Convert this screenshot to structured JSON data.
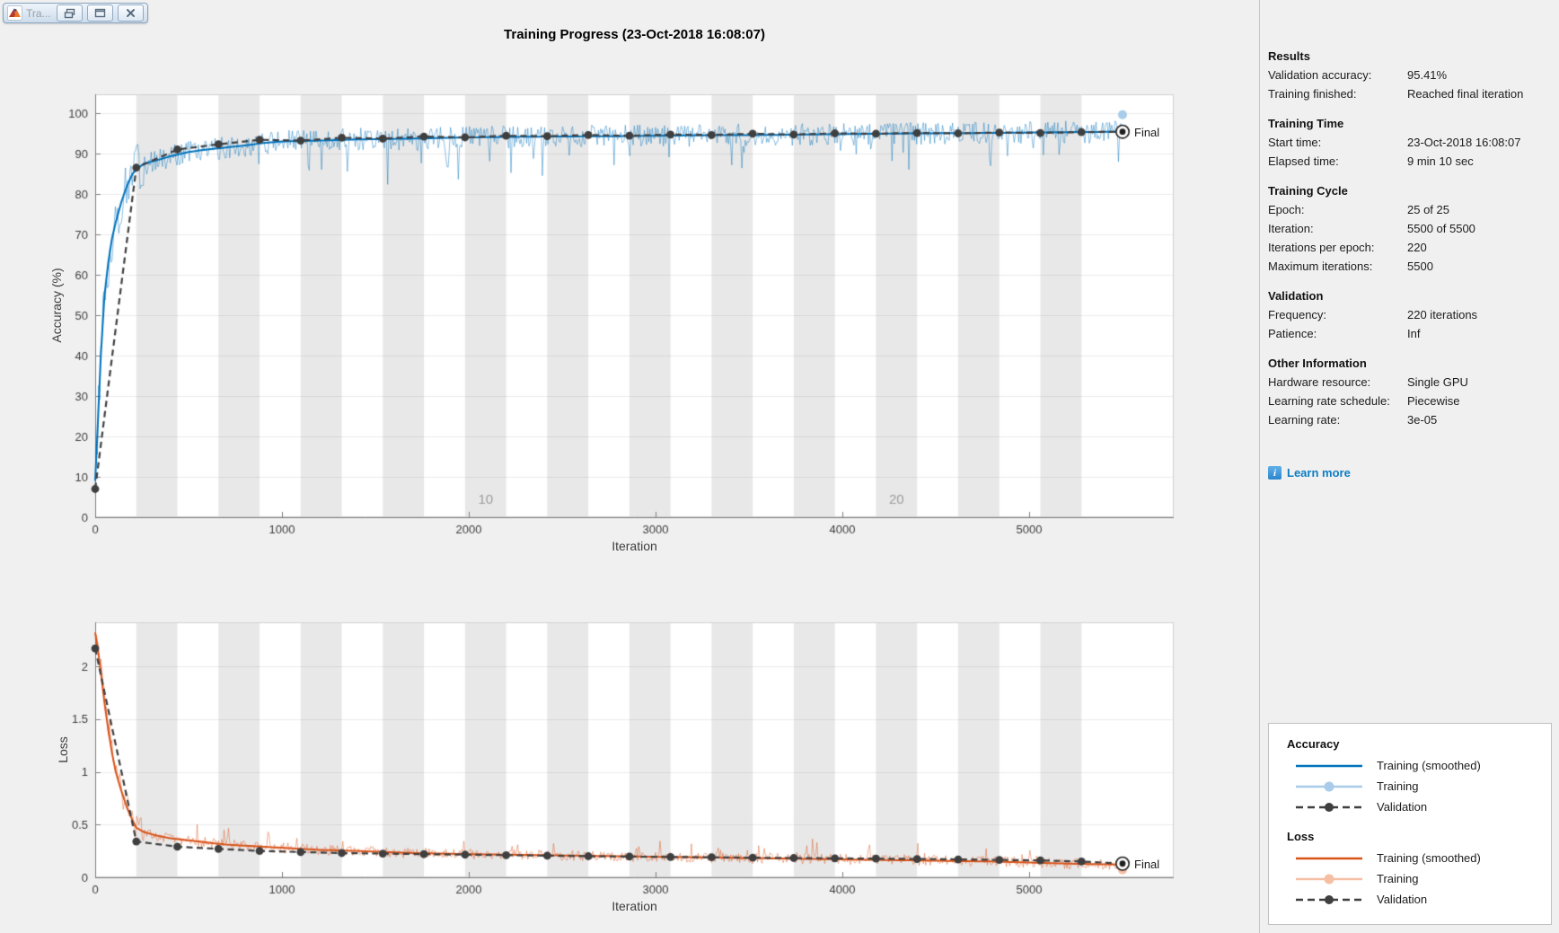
{
  "window": {
    "title": "Tra...",
    "titlebar_icons": [
      "matlab-logo-icon",
      "float-window-icon",
      "dock-window-icon",
      "close-icon"
    ]
  },
  "header": {
    "title": "Training Progress (23-Oct-2018 16:08:07)"
  },
  "chart_data": [
    {
      "type": "line",
      "id": "accuracy",
      "title": "",
      "xlabel": "Iteration",
      "ylabel": "Accuracy (%)",
      "xlim": [
        0,
        5774
      ],
      "ylim": [
        0,
        104.7
      ],
      "xticks": [
        0,
        1000,
        2000,
        3000,
        4000,
        5000
      ],
      "yticks": [
        0,
        10,
        20,
        30,
        40,
        50,
        60,
        70,
        80,
        90,
        100
      ],
      "grid": "horizontal",
      "epoch_count": 25,
      "iterations_per_epoch": 220,
      "max_iteration": 5500,
      "epoch_band_labels": [
        {
          "text": "10",
          "iteration": 2090
        },
        {
          "text": "20",
          "iteration": 4290
        }
      ],
      "final_label": "Final",
      "noise_seed": 13,
      "clamp": [
        1,
        100.4
      ],
      "series": [
        {
          "name": "Training (smoothed)",
          "color": "#0072BD",
          "points": [
            [
              0,
              9
            ],
            [
              15,
              24
            ],
            [
              30,
              40
            ],
            [
              50,
              55
            ],
            [
              70,
              63
            ],
            [
              90,
              69
            ],
            [
              110,
              73
            ],
            [
              140,
              78
            ],
            [
              170,
              82
            ],
            [
              200,
              85
            ],
            [
              220,
              86
            ],
            [
              260,
              87.5
            ],
            [
              320,
              88.2
            ],
            [
              400,
              89.3
            ],
            [
              500,
              90.4
            ],
            [
              600,
              91
            ],
            [
              700,
              91.5
            ],
            [
              800,
              92
            ],
            [
              900,
              92.6
            ],
            [
              1000,
              93
            ],
            [
              1200,
              93.2
            ],
            [
              1400,
              93.5
            ],
            [
              1700,
              93.7
            ],
            [
              2000,
              94
            ],
            [
              2400,
              94.2
            ],
            [
              2800,
              94.3
            ],
            [
              3200,
              94.5
            ],
            [
              3600,
              94.6
            ],
            [
              4000,
              94.8
            ],
            [
              4400,
              95
            ],
            [
              4800,
              95.1
            ],
            [
              5200,
              95.3
            ],
            [
              5500,
              95.4
            ]
          ]
        },
        {
          "name": "Training",
          "color": "rgba(0,114,189,0.45)",
          "marker_color": "#A8CCE9",
          "noise_amp": 2.8,
          "noise_amp_early": 6,
          "early_until": 260,
          "spike": 9,
          "spike_dir": -1,
          "end_value": 99.6
        },
        {
          "name": "Validation",
          "color": "#3F3F3F",
          "style": "dashed",
          "x_step": 220,
          "values": [
            7,
            86.5,
            91,
            92.3,
            93.4,
            93.2,
            93.9,
            93.7,
            94.2,
            94,
            94.4,
            94.3,
            94.6,
            94.4,
            94.7,
            94.6,
            94.9,
            94.7,
            95,
            94.9,
            95.1,
            95,
            95.2,
            95.1,
            95.3,
            95.41
          ],
          "final_value": 95.41
        }
      ]
    },
    {
      "type": "line",
      "id": "loss",
      "title": "",
      "xlabel": "Iteration",
      "ylabel": "Loss",
      "xlim": [
        0,
        5774
      ],
      "ylim": [
        0,
        2.42
      ],
      "xticks": [
        0,
        1000,
        2000,
        3000,
        4000,
        5000
      ],
      "yticks": [
        0,
        0.5,
        1,
        1.5,
        2
      ],
      "grid": "horizontal",
      "epoch_count": 25,
      "iterations_per_epoch": 220,
      "max_iteration": 5500,
      "epoch_band_labels": [],
      "final_label": "Final",
      "noise_seed": 29,
      "clamp": [
        0.02,
        2.42
      ],
      "series": [
        {
          "name": "Training (smoothed)",
          "color": "#D95319",
          "points": [
            [
              0,
              2.32
            ],
            [
              15,
              2.15
            ],
            [
              30,
              1.95
            ],
            [
              50,
              1.65
            ],
            [
              70,
              1.4
            ],
            [
              90,
              1.18
            ],
            [
              110,
              1.0
            ],
            [
              140,
              0.82
            ],
            [
              170,
              0.66
            ],
            [
              200,
              0.54
            ],
            [
              220,
              0.47
            ],
            [
              260,
              0.43
            ],
            [
              320,
              0.4
            ],
            [
              400,
              0.37
            ],
            [
              500,
              0.35
            ],
            [
              600,
              0.33
            ],
            [
              700,
              0.31
            ],
            [
              800,
              0.3
            ],
            [
              900,
              0.29
            ],
            [
              1000,
              0.28
            ],
            [
              1200,
              0.26
            ],
            [
              1400,
              0.25
            ],
            [
              1700,
              0.23
            ],
            [
              2000,
              0.22
            ],
            [
              2400,
              0.21
            ],
            [
              2800,
              0.2
            ],
            [
              3200,
              0.19
            ],
            [
              3600,
              0.18
            ],
            [
              4000,
              0.17
            ],
            [
              4400,
              0.16
            ],
            [
              4800,
              0.15
            ],
            [
              5200,
              0.13
            ],
            [
              5500,
              0.12
            ]
          ]
        },
        {
          "name": "Training",
          "color": "rgba(217,83,25,0.45)",
          "marker_color": "#F5BFA4",
          "noise_amp": 0.05,
          "noise_amp_early": 0.13,
          "early_until": 260,
          "spike": 0.16,
          "spike_dir": 1,
          "end_value": 0.07
        },
        {
          "name": "Validation",
          "color": "#3F3F3F",
          "style": "dashed",
          "x_step": 220,
          "values": [
            2.17,
            0.34,
            0.29,
            0.27,
            0.25,
            0.24,
            0.23,
            0.225,
            0.22,
            0.215,
            0.21,
            0.205,
            0.2,
            0.197,
            0.193,
            0.19,
            0.186,
            0.183,
            0.18,
            0.177,
            0.174,
            0.17,
            0.165,
            0.16,
            0.15,
            0.13
          ],
          "final_value": 0.13
        }
      ]
    }
  ],
  "info_panel": {
    "sections": [
      {
        "title": "Results",
        "rows": [
          {
            "label": "Validation accuracy:",
            "value": "95.41%"
          },
          {
            "label": "Training finished:",
            "value": "Reached final iteration"
          }
        ]
      },
      {
        "title": "Training Time",
        "rows": [
          {
            "label": "Start time:",
            "value": "23-Oct-2018 16:08:07"
          },
          {
            "label": "Elapsed time:",
            "value": "9 min 10 sec"
          }
        ]
      },
      {
        "title": "Training Cycle",
        "rows": [
          {
            "label": "Epoch:",
            "value": "25 of 25"
          },
          {
            "label": "Iteration:",
            "value": "5500 of 5500"
          },
          {
            "label": "Iterations per epoch:",
            "value": "220"
          },
          {
            "label": "Maximum iterations:",
            "value": "5500"
          }
        ]
      },
      {
        "title": "Validation",
        "rows": [
          {
            "label": "Frequency:",
            "value": "220 iterations"
          },
          {
            "label": "Patience:",
            "value": "Inf"
          }
        ]
      },
      {
        "title": "Other Information",
        "rows": [
          {
            "label": "Hardware resource:",
            "value": "Single GPU"
          },
          {
            "label": "Learning rate schedule:",
            "value": "Piecewise"
          },
          {
            "label": "Learning rate:",
            "value": "3e-05"
          }
        ]
      }
    ],
    "learn_more": "Learn more",
    "learn_more_icon": "info-icon"
  },
  "legend": {
    "groups": [
      {
        "title": "Accuracy",
        "entries": [
          {
            "label": "Training (smoothed)",
            "style": "solid",
            "color": "#0072BD"
          },
          {
            "label": "Training",
            "style": "solid-marker",
            "color": "#A8CCE9"
          },
          {
            "label": "Validation",
            "style": "dashed-marker",
            "color": "#3F3F3F"
          }
        ]
      },
      {
        "title": "Loss",
        "entries": [
          {
            "label": "Training (smoothed)",
            "style": "solid",
            "color": "#D95319"
          },
          {
            "label": "Training",
            "style": "solid-marker",
            "color": "#F5BFA4"
          },
          {
            "label": "Validation",
            "style": "dashed-marker",
            "color": "#3F3F3F"
          }
        ]
      }
    ]
  },
  "colors": {
    "accent_blue": "#0072BD",
    "accent_orange": "#D95319",
    "validation_gray": "#3F3F3F",
    "epoch_band": "#E8E8E8",
    "figure_bg": "#F0F0F0",
    "plot_bg": "#FFFFFF",
    "link_blue": "#0D7DC2"
  }
}
